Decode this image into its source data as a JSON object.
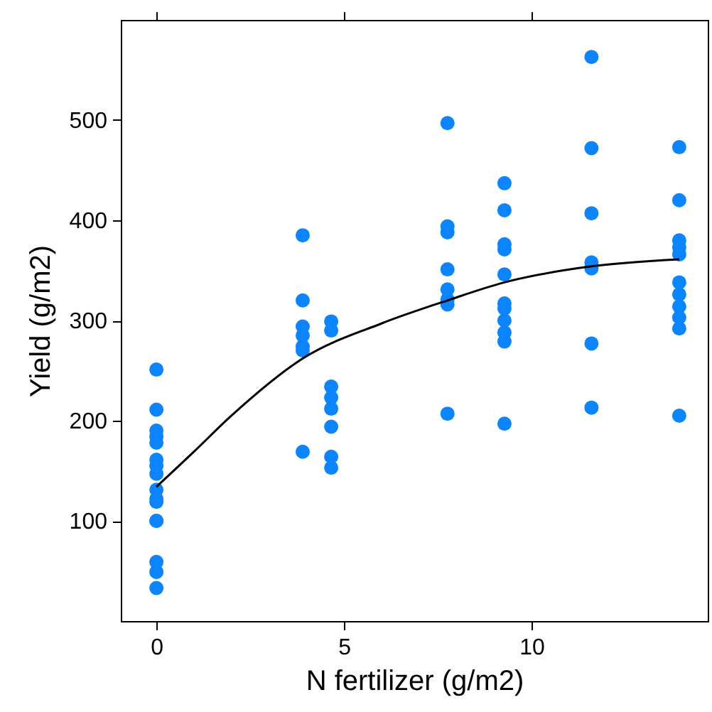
{
  "chart_data": {
    "type": "scatter",
    "xlabel": "N fertilizer (g/m2)",
    "ylabel": "Yield (g/m2)",
    "xlim": [
      -0.95,
      14.7
    ],
    "xticks": [
      0,
      5,
      10
    ],
    "ylim": [
      0,
      600
    ],
    "yticks": [
      100,
      200,
      300,
      400,
      500
    ],
    "tick_labels": [
      "x",
      "y"
    ],
    "grid": false,
    "marker": "circle",
    "series": [
      {
        "type": "scatter",
        "color": "#0a84ff",
        "x": [
          0,
          0,
          0,
          0,
          0,
          0,
          0,
          0,
          0,
          0,
          0,
          0,
          0,
          0,
          0,
          0,
          3.9,
          3.9,
          3.9,
          3.9,
          3.9,
          3.9,
          3.9,
          4.66,
          4.66,
          4.66,
          4.66,
          4.66,
          4.66,
          4.66,
          4.66,
          7.76,
          7.76,
          7.76,
          7.76,
          7.76,
          7.76,
          7.76,
          7.76,
          9.28,
          9.28,
          9.28,
          9.28,
          9.28,
          9.28,
          9.28,
          9.28,
          9.28,
          9.28,
          9.28,
          11.6,
          11.6,
          11.6,
          11.6,
          11.6,
          11.6,
          11.6,
          13.94,
          13.94,
          13.94,
          13.94,
          13.94,
          13.94,
          13.94,
          13.94,
          13.94,
          13.94,
          13.94
        ],
        "values": [
          251,
          211,
          190,
          184,
          178,
          161,
          155,
          147,
          131,
          122,
          119,
          100,
          100,
          59,
          49,
          33,
          385,
          320,
          294,
          285,
          274,
          270,
          169,
          299,
          290,
          234,
          223,
          212,
          194,
          164,
          153,
          497,
          394,
          388,
          351,
          331,
          321,
          316,
          207,
          437,
          410,
          376,
          371,
          346,
          317,
          312,
          300,
          288,
          279,
          197,
          563,
          472,
          407,
          358,
          352,
          277,
          213,
          473,
          420,
          380,
          373,
          366,
          338,
          326,
          314,
          303,
          292,
          205
        ]
      },
      {
        "type": "line",
        "color": "#000000",
        "line_style": "solid",
        "marker": "none",
        "x": [
          0,
          1,
          2,
          3.9,
          6,
          7.76,
          9.28,
          11.6,
          13.94
        ],
        "values": [
          134,
          169,
          205,
          262,
          297,
          320,
          338,
          354,
          361
        ]
      }
    ]
  }
}
